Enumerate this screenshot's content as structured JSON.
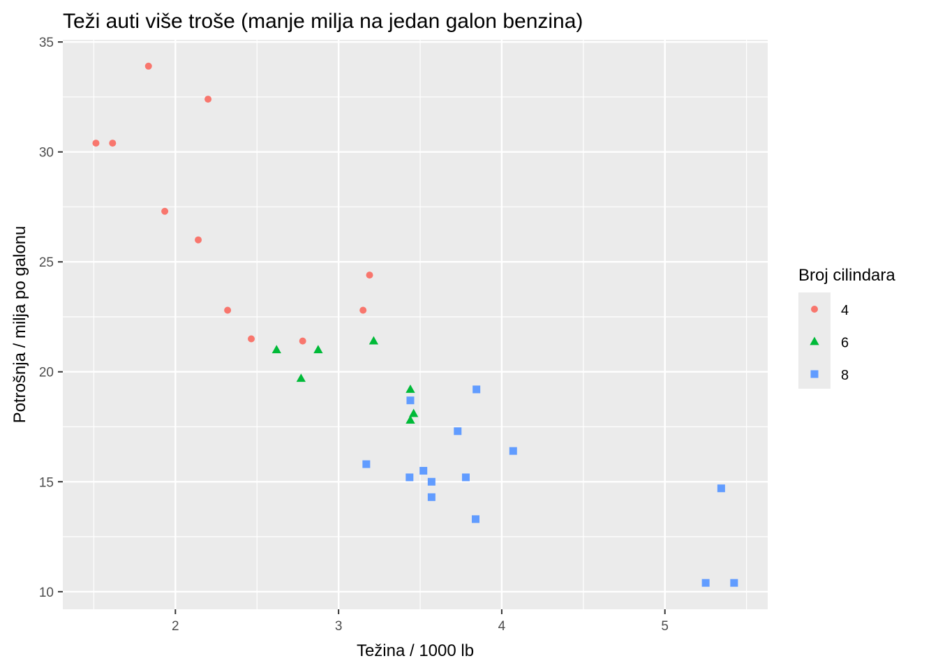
{
  "chart_data": {
    "type": "scatter",
    "title": "Teži auti više troše (manje milja na jedan galon benzina)",
    "xlabel": "Težina / 1000 lb",
    "ylabel": "Potrošnja / milja po galonu",
    "xlim": [
      1.31,
      5.63
    ],
    "ylim": [
      9.2,
      35.1
    ],
    "x_ticks": [
      2,
      3,
      4,
      5
    ],
    "y_ticks": [
      10,
      15,
      20,
      25,
      30,
      35
    ],
    "x_tick_labels": [
      "2",
      "3",
      "4",
      "5"
    ],
    "y_tick_labels": [
      "10",
      "15",
      "20",
      "25",
      "30",
      "35"
    ],
    "grid": true,
    "legend": {
      "title": "Broj cilindara",
      "placement": "right",
      "entries": [
        {
          "label": "4",
          "shape": "circle",
          "color": "#F8766D"
        },
        {
          "label": "6",
          "shape": "triangle",
          "color": "#00BA38"
        },
        {
          "label": "8",
          "shape": "square",
          "color": "#619CFF"
        }
      ]
    },
    "series": [
      {
        "name": "4",
        "shape": "circle",
        "color": "#F8766D",
        "points": [
          {
            "x": 1.513,
            "y": 30.4
          },
          {
            "x": 1.615,
            "y": 30.4
          },
          {
            "x": 1.835,
            "y": 33.9
          },
          {
            "x": 1.935,
            "y": 27.3
          },
          {
            "x": 2.14,
            "y": 26.0
          },
          {
            "x": 2.2,
            "y": 32.4
          },
          {
            "x": 2.32,
            "y": 22.8
          },
          {
            "x": 2.465,
            "y": 21.5
          },
          {
            "x": 2.78,
            "y": 21.4
          },
          {
            "x": 3.15,
            "y": 22.8
          },
          {
            "x": 3.19,
            "y": 24.4
          }
        ]
      },
      {
        "name": "6",
        "shape": "triangle",
        "color": "#00BA38",
        "points": [
          {
            "x": 2.62,
            "y": 21.0
          },
          {
            "x": 2.77,
            "y": 19.7
          },
          {
            "x": 2.875,
            "y": 21.0
          },
          {
            "x": 3.215,
            "y": 21.4
          },
          {
            "x": 3.44,
            "y": 19.2
          },
          {
            "x": 3.44,
            "y": 17.8
          },
          {
            "x": 3.46,
            "y": 18.1
          }
        ]
      },
      {
        "name": "8",
        "shape": "square",
        "color": "#619CFF",
        "points": [
          {
            "x": 3.17,
            "y": 15.8
          },
          {
            "x": 3.435,
            "y": 15.2
          },
          {
            "x": 3.44,
            "y": 18.7
          },
          {
            "x": 3.52,
            "y": 15.5
          },
          {
            "x": 3.57,
            "y": 15.0
          },
          {
            "x": 3.57,
            "y": 14.3
          },
          {
            "x": 3.73,
            "y": 17.3
          },
          {
            "x": 3.78,
            "y": 15.2
          },
          {
            "x": 3.84,
            "y": 13.3
          },
          {
            "x": 3.845,
            "y": 19.2
          },
          {
            "x": 4.07,
            "y": 16.4
          },
          {
            "x": 5.25,
            "y": 10.4
          },
          {
            "x": 5.345,
            "y": 14.7
          },
          {
            "x": 5.424,
            "y": 10.4
          }
        ]
      }
    ]
  }
}
